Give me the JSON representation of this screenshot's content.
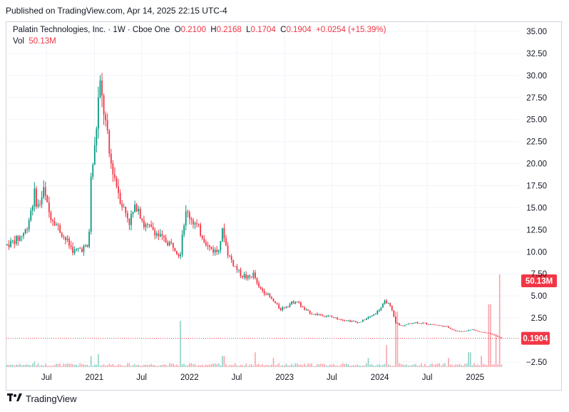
{
  "header": {
    "published": "Published on TradingView.com, Apr 14, 2025 22:15 UTC-4"
  },
  "legend": {
    "symbol": "Palatin Technologies, Inc. · 1W · Cboe One",
    "o_label": "O",
    "o_value": "0.2100",
    "h_label": "H",
    "h_value": "0.2168",
    "l_label": "L",
    "l_value": "0.1704",
    "c_label": "C",
    "c_value": "0.1904",
    "change": "+0.0254 (+15.39%)",
    "vol_label": "Vol",
    "vol_value": "50.13M"
  },
  "footer": {
    "brand": "TradingView",
    "logo": "tradingview-logo-icon"
  },
  "colors": {
    "up": "#089981",
    "down": "#f23645",
    "grid": "#f0f3fa",
    "text": "#131722"
  },
  "chart_data": {
    "type": "candlestick",
    "title": "Palatin Technologies, Inc. · 1W · Cboe One",
    "ylim": [
      -3.5,
      36.5
    ],
    "yticks": [
      "35.00",
      "32.50",
      "30.00",
      "27.50",
      "25.00",
      "22.50",
      "20.00",
      "17.50",
      "15.00",
      "12.50",
      "10.00",
      "7.50",
      "5.00",
      "2.50",
      "−2.50"
    ],
    "ytick_values": [
      35,
      32.5,
      30,
      27.5,
      25,
      22.5,
      20,
      17.5,
      15,
      12.5,
      10,
      7.5,
      5,
      2.5,
      -2.5
    ],
    "xticks": [
      "Jul",
      "2021",
      "Jul",
      "2022",
      "Jul",
      "2023",
      "Jul",
      "2024",
      "Jul",
      "2025"
    ],
    "xtick_dates": [
      "2020-07-01",
      "2021-01-01",
      "2021-07-01",
      "2022-01-01",
      "2022-07-01",
      "2023-01-01",
      "2023-07-01",
      "2024-01-01",
      "2024-07-01",
      "2025-01-01"
    ],
    "x_range": [
      "2020-02-01",
      "2025-04-14"
    ],
    "last_price": "0.1904",
    "last_volume": "50.13M",
    "price_path": [
      [
        "2020-02-01",
        10.8
      ],
      [
        "2020-03-15",
        11.5
      ],
      [
        "2020-04-15",
        12.5
      ],
      [
        "2020-05-15",
        16.5
      ],
      [
        "2020-06-01",
        15.0
      ],
      [
        "2020-06-20",
        17.0
      ],
      [
        "2020-07-10",
        14.5
      ],
      [
        "2020-08-10",
        13.0
      ],
      [
        "2020-09-10",
        11.5
      ],
      [
        "2020-10-15",
        10.0
      ],
      [
        "2020-11-20",
        10.5
      ],
      [
        "2020-12-10",
        10.5
      ],
      [
        "2020-12-18",
        18.0
      ],
      [
        "2021-01-05",
        22.5
      ],
      [
        "2021-01-20",
        29.0
      ],
      [
        "2021-02-01",
        27.0
      ],
      [
        "2021-02-15",
        24.0
      ],
      [
        "2021-03-01",
        20.5
      ],
      [
        "2021-03-20",
        18.5
      ],
      [
        "2021-04-15",
        15.5
      ],
      [
        "2021-05-15",
        13.5
      ],
      [
        "2021-06-15",
        15.5
      ],
      [
        "2021-07-10",
        13.0
      ],
      [
        "2021-08-15",
        12.5
      ],
      [
        "2021-09-15",
        11.5
      ],
      [
        "2021-10-15",
        11.0
      ],
      [
        "2021-11-10",
        10.5
      ],
      [
        "2021-11-25",
        9.5
      ],
      [
        "2021-12-05",
        12.5
      ],
      [
        "2021-12-20",
        14.5
      ],
      [
        "2022-01-15",
        13.5
      ],
      [
        "2022-02-15",
        12.0
      ],
      [
        "2022-03-15",
        10.5
      ],
      [
        "2022-04-15",
        10.0
      ],
      [
        "2022-05-10",
        12.5
      ],
      [
        "2022-05-25",
        10.0
      ],
      [
        "2022-06-20",
        8.5
      ],
      [
        "2022-07-15",
        7.5
      ],
      [
        "2022-08-15",
        7.0
      ],
      [
        "2022-09-05",
        7.5
      ],
      [
        "2022-09-20",
        6.0
      ],
      [
        "2022-10-15",
        5.5
      ],
      [
        "2022-11-15",
        4.5
      ],
      [
        "2022-12-15",
        3.5
      ],
      [
        "2023-01-15",
        4.0
      ],
      [
        "2023-02-15",
        4.5
      ],
      [
        "2023-03-15",
        3.5
      ],
      [
        "2023-04-15",
        3.0
      ],
      [
        "2023-06-15",
        2.7
      ],
      [
        "2023-08-15",
        2.3
      ],
      [
        "2023-10-15",
        2.0
      ],
      [
        "2023-11-15",
        2.5
      ],
      [
        "2023-12-15",
        3.0
      ],
      [
        "2024-01-10",
        3.8
      ],
      [
        "2024-01-25",
        4.5
      ],
      [
        "2024-02-15",
        3.5
      ],
      [
        "2024-03-01",
        2.0
      ],
      [
        "2024-03-20",
        1.6
      ],
      [
        "2024-05-15",
        2.0
      ],
      [
        "2024-07-15",
        1.8
      ],
      [
        "2024-09-15",
        1.5
      ],
      [
        "2024-10-20",
        1.0
      ],
      [
        "2024-11-20",
        1.0
      ],
      [
        "2024-12-20",
        1.2
      ],
      [
        "2025-01-20",
        0.9
      ],
      [
        "2025-02-20",
        0.8
      ],
      [
        "2025-03-20",
        0.5
      ],
      [
        "2025-04-14",
        0.19
      ]
    ],
    "volume_spikes_millions": [
      [
        "2020-05-15",
        3
      ],
      [
        "2020-12-20",
        6
      ],
      [
        "2021-01-15",
        7
      ],
      [
        "2021-11-25",
        25
      ],
      [
        "2022-05-10",
        6
      ],
      [
        "2022-09-10",
        8
      ],
      [
        "2022-11-20",
        5
      ],
      [
        "2023-11-20",
        5
      ],
      [
        "2024-01-25",
        12
      ],
      [
        "2024-03-05",
        30
      ],
      [
        "2024-09-20",
        5
      ],
      [
        "2024-12-10",
        8
      ],
      [
        "2025-01-25",
        6
      ],
      [
        "2025-02-25",
        34
      ],
      [
        "2025-03-20",
        18
      ],
      [
        "2025-04-07",
        50.13
      ]
    ]
  }
}
